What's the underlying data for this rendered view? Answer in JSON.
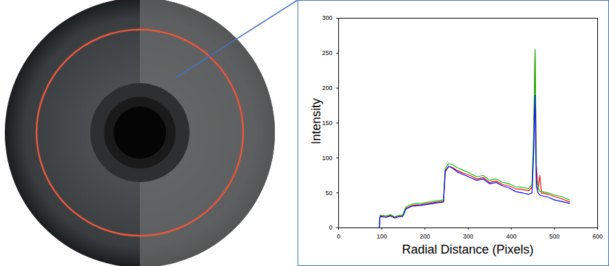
{
  "chart_data": {
    "type": "line",
    "x_label": "Radial Distance (Pixels)",
    "y_label": "Intensity",
    "x": [
      0,
      90,
      94,
      96,
      110,
      120,
      130,
      140,
      148,
      152,
      156,
      170,
      190,
      210,
      230,
      243,
      247,
      255,
      265,
      275,
      290,
      305,
      320,
      335,
      350,
      365,
      380,
      395,
      410,
      425,
      440,
      448,
      452,
      455,
      458,
      462,
      466,
      470,
      485,
      500,
      515,
      535
    ],
    "series": [
      {
        "color": "#ff0000",
        "values": [
          0,
          0,
          0,
          17,
          16,
          18,
          15,
          17,
          17,
          22,
          28,
          32,
          33,
          35,
          37,
          38,
          80,
          88,
          86,
          82,
          78,
          75,
          70,
          72,
          65,
          67,
          62,
          60,
          56,
          55,
          53,
          58,
          120,
          255,
          90,
          55,
          75,
          50,
          48,
          45,
          42,
          37
        ]
      },
      {
        "color": "#00c800",
        "values": [
          0,
          0,
          0,
          18,
          17,
          19,
          16,
          18,
          18,
          24,
          30,
          34,
          35,
          37,
          39,
          40,
          85,
          92,
          90,
          86,
          82,
          78,
          73,
          75,
          68,
          70,
          65,
          63,
          59,
          58,
          56,
          62,
          140,
          255,
          70,
          58,
          52,
          52,
          50,
          47,
          45,
          40
        ]
      },
      {
        "color": "#0000ff",
        "values": [
          0,
          0,
          0,
          16,
          15,
          17,
          14,
          16,
          16,
          21,
          27,
          31,
          32,
          34,
          36,
          37,
          82,
          88,
          85,
          80,
          76,
          72,
          68,
          70,
          63,
          65,
          60,
          57,
          52,
          50,
          48,
          50,
          110,
          190,
          60,
          50,
          47,
          46,
          44,
          40,
          38,
          35
        ]
      }
    ],
    "xlim": [
      0,
      600
    ],
    "ylim": [
      0,
      300
    ],
    "xticks": [
      0,
      100,
      200,
      300,
      400,
      500,
      600
    ],
    "yticks": [
      0,
      50,
      100,
      150,
      200,
      250,
      300
    ],
    "grid": false
  }
}
